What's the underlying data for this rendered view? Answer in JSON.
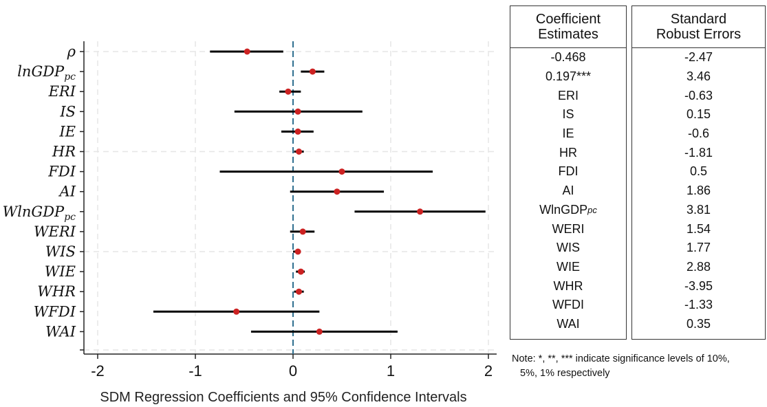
{
  "chart_data": {
    "type": "coefficient-plot",
    "xlabel": "SDM Regression Coefficients and 95% Confidence Intervals",
    "xlim": [
      -2.1,
      2.1
    ],
    "xticks": [
      "-2",
      "-1",
      "0",
      "1",
      "2"
    ],
    "reference_line": 0,
    "marker_color": "#cc2222",
    "reference_color": "#2f6f8f",
    "variables": [
      {
        "label": "ρ",
        "estimate": -0.47,
        "ci": [
          -0.85,
          -0.1
        ]
      },
      {
        "label": "lnGDP",
        "sub": "pc",
        "estimate": 0.2,
        "ci": [
          0.08,
          0.32
        ]
      },
      {
        "label": "ERI",
        "estimate": -0.05,
        "ci": [
          -0.14,
          0.08
        ]
      },
      {
        "label": "IS",
        "estimate": 0.05,
        "ci": [
          -0.6,
          0.71
        ]
      },
      {
        "label": "IE",
        "estimate": 0.05,
        "ci": [
          -0.12,
          0.21
        ]
      },
      {
        "label": "HR",
        "estimate": 0.06,
        "ci": [
          0.01,
          0.11
        ]
      },
      {
        "label": "FDI",
        "estimate": 0.5,
        "ci": [
          -0.75,
          1.43
        ]
      },
      {
        "label": "AI",
        "estimate": 0.45,
        "ci": [
          -0.03,
          0.93
        ]
      },
      {
        "label": "WlnGDP",
        "sub": "pc",
        "estimate": 1.3,
        "ci": [
          0.63,
          1.97
        ]
      },
      {
        "label": "WERI",
        "estimate": 0.1,
        "ci": [
          -0.03,
          0.22
        ]
      },
      {
        "label": "WIS",
        "estimate": 0.05,
        "ci": [
          0.0,
          0.08
        ]
      },
      {
        "label": "WIE",
        "estimate": 0.08,
        "ci": [
          0.03,
          0.12
        ]
      },
      {
        "label": "WHR",
        "estimate": 0.06,
        "ci": [
          0.01,
          0.11
        ]
      },
      {
        "label": "WFDI",
        "estimate": -0.58,
        "ci": [
          -1.43,
          0.27
        ]
      },
      {
        "label": "WAI",
        "estimate": 0.27,
        "ci": [
          -0.43,
          1.07
        ]
      }
    ]
  },
  "table": {
    "coef_header": [
      "Coefficient",
      "Estimates"
    ],
    "se_header": [
      "Standard",
      "Robust Errors"
    ],
    "coef": [
      {
        "text": "-0.468"
      },
      {
        "text": "0.197***"
      },
      {
        "text": "ERI"
      },
      {
        "text": "IS"
      },
      {
        "text": "IE"
      },
      {
        "text": "HR"
      },
      {
        "text": "FDI"
      },
      {
        "text": "AI"
      },
      {
        "text": "WlnGDP",
        "sub": "pc"
      },
      {
        "text": "WERI"
      },
      {
        "text": "WIS"
      },
      {
        "text": "WIE"
      },
      {
        "text": "WHR"
      },
      {
        "text": "WFDI"
      },
      {
        "text": "WAI"
      }
    ],
    "se": [
      "-2.47",
      "3.46",
      "-0.63",
      "0.15",
      "-0.6",
      "-1.81",
      "0.5",
      "1.86",
      "3.81",
      "1.54",
      "1.77",
      "2.88",
      "-3.95",
      "-1.33",
      "0.35"
    ]
  },
  "note": {
    "line1": "Note: *, **, *** indicate significance levels of 10%,",
    "line2": "5%, 1% respectively"
  }
}
